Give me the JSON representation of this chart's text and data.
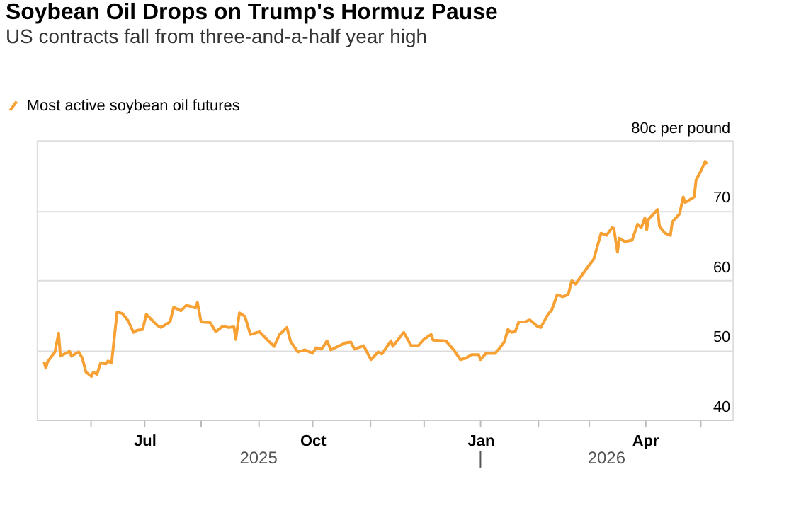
{
  "chart_data": {
    "type": "line",
    "title": "Soybean Oil Drops on Trump's Hormuz Pause",
    "subtitle": "US contracts fall from three-and-a-half year high",
    "annotations": [
      "2025",
      "2026"
    ],
    "x": [
      "2025-05-07",
      "2025-05-08",
      "2025-05-09",
      "2025-05-13",
      "2025-05-15",
      "2025-05-16",
      "2025-05-21",
      "2025-05-22",
      "2025-05-26",
      "2025-05-28",
      "2025-05-30",
      "2025-06-02",
      "2025-06-03",
      "2025-06-05",
      "2025-06-07",
      "2025-06-10",
      "2025-06-11",
      "2025-06-13",
      "2025-06-16",
      "2025-06-19",
      "2025-06-22",
      "2025-06-25",
      "2025-06-27",
      "2025-06-30",
      "2025-07-02",
      "2025-07-08",
      "2025-07-10",
      "2025-07-15",
      "2025-07-17",
      "2025-07-21",
      "2025-07-24",
      "2025-07-29",
      "2025-07-30",
      "2025-08-01",
      "2025-08-06",
      "2025-08-09",
      "2025-08-13",
      "2025-08-16",
      "2025-08-19",
      "2025-08-20",
      "2025-08-22",
      "2025-08-25",
      "2025-08-28",
      "2025-09-02",
      "2025-09-06",
      "2025-09-10",
      "2025-09-13",
      "2025-09-17",
      "2025-09-19",
      "2025-09-23",
      "2025-09-27",
      "2025-10-01",
      "2025-10-03",
      "2025-10-06",
      "2025-10-09",
      "2025-10-11",
      "2025-10-19",
      "2025-10-22",
      "2025-10-24",
      "2025-10-29",
      "2025-11-02",
      "2025-11-06",
      "2025-11-08",
      "2025-11-13",
      "2025-11-14",
      "2025-11-20",
      "2025-11-24",
      "2025-11-28",
      "2025-12-01",
      "2025-12-05",
      "2025-12-06",
      "2025-12-13",
      "2025-12-17",
      "2025-12-21",
      "2025-12-24",
      "2025-12-27",
      "2025-12-31",
      "2026-01-01",
      "2026-01-04",
      "2026-01-09",
      "2026-01-11",
      "2026-01-14",
      "2026-01-16",
      "2026-01-18",
      "2026-01-20",
      "2026-01-22",
      "2026-01-25",
      "2026-01-28",
      "2026-02-01",
      "2026-02-03",
      "2026-02-07",
      "2026-02-09",
      "2026-02-12",
      "2026-02-15",
      "2026-02-18",
      "2026-02-20",
      "2026-02-22",
      "2026-02-28",
      "2026-03-04",
      "2026-03-08",
      "2026-03-11",
      "2026-03-14",
      "2026-03-15",
      "2026-03-17",
      "2026-03-18",
      "2026-03-21",
      "2026-03-25",
      "2026-03-28",
      "2026-03-30",
      "2026-04-01",
      "2026-04-02",
      "2026-04-03",
      "2026-04-08",
      "2026-04-09",
      "2026-04-12",
      "2026-04-15",
      "2026-04-16",
      "2026-04-20",
      "2026-04-22",
      "2026-04-23",
      "2026-04-28",
      "2026-04-29",
      "2026-05-02",
      "2026-05-04",
      "2026-05-05"
    ],
    "series": [
      {
        "name": "Most active soybean oil futures",
        "color": "#f7a033",
        "values": [
          48.3,
          47.4,
          48.3,
          49.7,
          52.4,
          49.1,
          49.8,
          49.1,
          49.7,
          48.8,
          46.8,
          46.2,
          46.8,
          46.5,
          48.1,
          48.0,
          48.4,
          48.1,
          55.4,
          55.2,
          54.2,
          52.5,
          52.8,
          52.9,
          55.1,
          53.5,
          53.2,
          54.0,
          56.1,
          55.6,
          56.4,
          56.0,
          56.8,
          54.0,
          53.9,
          52.6,
          53.4,
          53.2,
          53.3,
          51.5,
          55.3,
          54.8,
          52.2,
          52.6,
          51.5,
          50.5,
          52.2,
          53.2,
          51.2,
          49.7,
          50.0,
          49.5,
          50.3,
          50.1,
          51.3,
          50.0,
          51.0,
          51.1,
          50.1,
          50.6,
          48.6,
          49.7,
          49.4,
          51.3,
          50.5,
          52.5,
          50.6,
          50.6,
          51.5,
          52.2,
          51.4,
          51.3,
          50.1,
          48.6,
          48.8,
          49.3,
          49.3,
          48.6,
          49.5,
          49.5,
          50.1,
          51.1,
          52.9,
          52.5,
          52.6,
          54.0,
          54.0,
          54.3,
          53.4,
          53.2,
          55.1,
          55.7,
          57.9,
          57.6,
          57.9,
          59.9,
          59.4,
          61.6,
          63.0,
          66.7,
          66.4,
          67.5,
          67.4,
          64.0,
          66.0,
          65.5,
          65.7,
          68.0,
          67.5,
          68.9,
          67.2,
          68.7,
          70.1,
          67.7,
          66.7,
          66.4,
          68.3,
          69.5,
          71.9,
          71.1,
          71.9,
          74.3,
          75.8,
          77.0,
          76.6
        ]
      }
    ],
    "xlim": [
      "2025-05-03",
      "2026-05-19"
    ],
    "xticks": [
      {
        "value": "2025-06-01",
        "label": null
      },
      {
        "value": "2025-07-01",
        "label": "Jul"
      },
      {
        "value": "2025-08-01",
        "label": null
      },
      {
        "value": "2025-09-01",
        "label": null
      },
      {
        "value": "2025-10-01",
        "label": "Oct"
      },
      {
        "value": "2025-11-01",
        "label": null
      },
      {
        "value": "2025-12-01",
        "label": null
      },
      {
        "value": "2026-01-01",
        "label": "Jan"
      },
      {
        "value": "2026-02-01",
        "label": null
      },
      {
        "value": "2026-03-01",
        "label": null
      },
      {
        "value": "2026-04-01",
        "label": "Apr"
      },
      {
        "value": "2026-05-01",
        "label": null
      }
    ],
    "ylim": [
      40,
      80
    ],
    "yticks": [
      40,
      50,
      60,
      70,
      {
        "value": 80,
        "label": "80c per pound"
      }
    ],
    "grid": "y",
    "legend": "top left",
    "marker": "none",
    "line_style": "solid"
  }
}
